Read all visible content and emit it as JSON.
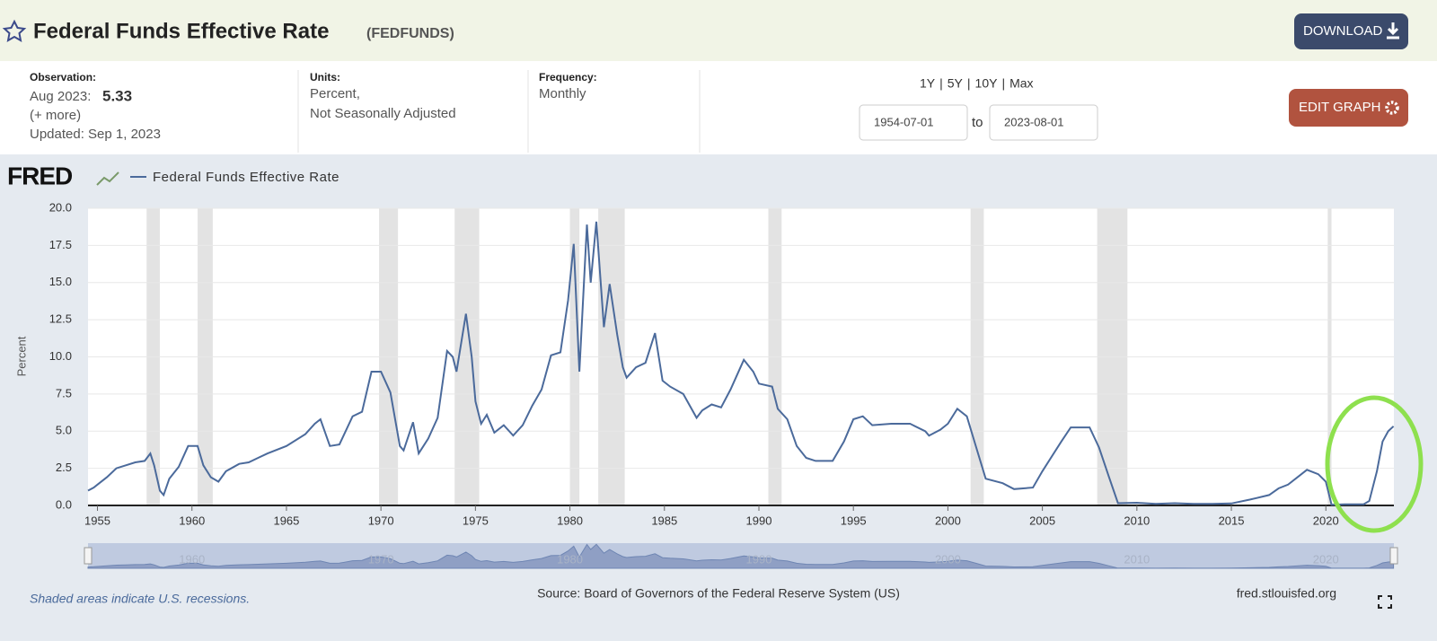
{
  "header": {
    "title": "Federal Funds Effective Rate",
    "series_id": "(FEDFUNDS)",
    "download": "DOWNLOAD"
  },
  "info": {
    "observation_label": "Observation:",
    "observation_date": "Aug 2023:",
    "observation_value": "5.33",
    "more": "(+ more)",
    "updated": "Updated: Sep 1, 2023",
    "units_label": "Units:",
    "units": [
      "Percent,",
      "Not Seasonally Adjusted"
    ],
    "frequency_label": "Frequency:",
    "frequency": "Monthly"
  },
  "range": {
    "buttons": [
      "1Y",
      "5Y",
      "10Y",
      "Max"
    ],
    "separator": "|",
    "start": "1954-07-01",
    "to": "to",
    "end": "2023-08-01",
    "edit": "EDIT GRAPH"
  },
  "chart_data": {
    "type": "line",
    "logo": "FRED",
    "ylabel": "Percent",
    "series": [
      {
        "name": "Federal Funds Effective Rate",
        "color": "#4b6a9b",
        "x": [
          1954.5,
          1954.8,
          1955,
          1955.5,
          1956,
          1956.5,
          1957,
          1957.5,
          1957.8,
          1958,
          1958.3,
          1958.5,
          1958.8,
          1959.3,
          1959.8,
          1960.3,
          1960.6,
          1961,
          1961.4,
          1961.8,
          1962.5,
          1963,
          1963.5,
          1964,
          1965,
          1966,
          1966.5,
          1966.8,
          1967.3,
          1967.8,
          1968.5,
          1969,
          1969.5,
          1970,
          1970.5,
          1971,
          1971.2,
          1971.7,
          1972,
          1972.5,
          1973,
          1973.5,
          1973.8,
          1974,
          1974.5,
          1974.8,
          1975,
          1975.3,
          1975.6,
          1976,
          1976.5,
          1977,
          1977.5,
          1978,
          1978.5,
          1979,
          1979.5,
          1979.9,
          1980.2,
          1980.5,
          1980.9,
          1981.1,
          1981.4,
          1981.8,
          1982.1,
          1982.5,
          1982.8,
          1983,
          1983.5,
          1984,
          1984.5,
          1984.9,
          1985.3,
          1986,
          1986.7,
          1987,
          1987.5,
          1988,
          1988.5,
          1989.2,
          1989.7,
          1990,
          1990.7,
          1991,
          1991.5,
          1992,
          1992.5,
          1993,
          1993.9,
          1994.5,
          1995,
          1995.5,
          1996,
          1997,
          1998,
          1998.8,
          1999,
          1999.6,
          2000,
          2000.5,
          2001,
          2001.5,
          2002,
          2002.9,
          2003.5,
          2004.5,
          2005,
          2006,
          2006.5,
          2007.5,
          2008,
          2008.5,
          2009,
          2010,
          2011,
          2012,
          2013,
          2014,
          2015,
          2016,
          2017,
          2017.5,
          2018,
          2019,
          2019.6,
          2020,
          2020.3,
          2021,
          2022,
          2022.3,
          2022.7,
          2023,
          2023.3,
          2023.58
        ],
        "values": [
          1.0,
          1.2,
          1.4,
          1.9,
          2.5,
          2.7,
          2.9,
          3.0,
          3.5,
          2.7,
          1.0,
          0.7,
          1.8,
          2.6,
          4.0,
          4.0,
          2.7,
          1.9,
          1.6,
          2.3,
          2.8,
          2.9,
          3.2,
          3.5,
          4.0,
          4.8,
          5.5,
          5.8,
          4.0,
          4.1,
          6.0,
          6.3,
          9.0,
          9.0,
          7.6,
          4.0,
          3.7,
          5.6,
          3.5,
          4.5,
          5.9,
          10.4,
          10.0,
          9.0,
          12.9,
          10.0,
          7.0,
          5.5,
          6.1,
          4.9,
          5.4,
          4.7,
          5.4,
          6.7,
          7.8,
          10.1,
          10.3,
          13.8,
          17.6,
          9.0,
          18.9,
          15.0,
          19.1,
          12.0,
          14.9,
          11.5,
          9.3,
          8.6,
          9.3,
          9.6,
          11.6,
          8.4,
          8.0,
          7.5,
          5.9,
          6.4,
          6.8,
          6.6,
          7.8,
          9.8,
          9.0,
          8.2,
          8.0,
          6.5,
          5.8,
          4.0,
          3.2,
          3.0,
          3.0,
          4.3,
          5.8,
          6.0,
          5.4,
          5.5,
          5.5,
          5.0,
          4.7,
          5.1,
          5.5,
          6.5,
          6.0,
          3.9,
          1.8,
          1.5,
          1.1,
          1.2,
          2.3,
          4.3,
          5.25,
          5.25,
          3.9,
          2.0,
          0.15,
          0.18,
          0.1,
          0.15,
          0.1,
          0.1,
          0.13,
          0.4,
          0.7,
          1.15,
          1.4,
          2.4,
          2.1,
          1.6,
          0.05,
          0.08,
          0.08,
          0.3,
          2.3,
          4.3,
          5.0,
          5.33
        ]
      }
    ],
    "recessions": [
      [
        1957.6,
        1958.3
      ],
      [
        1960.3,
        1961.1
      ],
      [
        1969.9,
        1970.9
      ],
      [
        1973.9,
        1975.2
      ],
      [
        1980.0,
        1980.5
      ],
      [
        1981.5,
        1982.9
      ],
      [
        1990.5,
        1991.2
      ],
      [
        2001.2,
        2001.9
      ],
      [
        2007.9,
        2009.5
      ],
      [
        2020.1,
        2020.3
      ]
    ],
    "xlim": [
      1954.5,
      2023.6
    ],
    "xticks": [
      1955,
      1960,
      1965,
      1970,
      1975,
      1980,
      1985,
      1990,
      1995,
      2000,
      2005,
      2010,
      2015,
      2020
    ],
    "ylim": [
      0,
      20
    ],
    "yticks": [
      {
        "value": 0,
        "label": "0.0"
      },
      2.5,
      {
        "value": 5,
        "label": "5.0"
      },
      7.5,
      {
        "value": 10,
        "label": "10.0"
      },
      12.5,
      {
        "value": 15,
        "label": "15.0"
      },
      17.5,
      {
        "value": 20,
        "label": "20.0"
      }
    ],
    "navigator_ticks": [
      1960,
      1970,
      1980,
      1990,
      2000,
      2010,
      2020
    ],
    "grid": true
  },
  "footer": {
    "note": "Shaded areas indicate U.S. recessions.",
    "source": "Source: Board of Governors of the Federal Reserve System (US)",
    "site": "fred.stlouisfed.org"
  }
}
